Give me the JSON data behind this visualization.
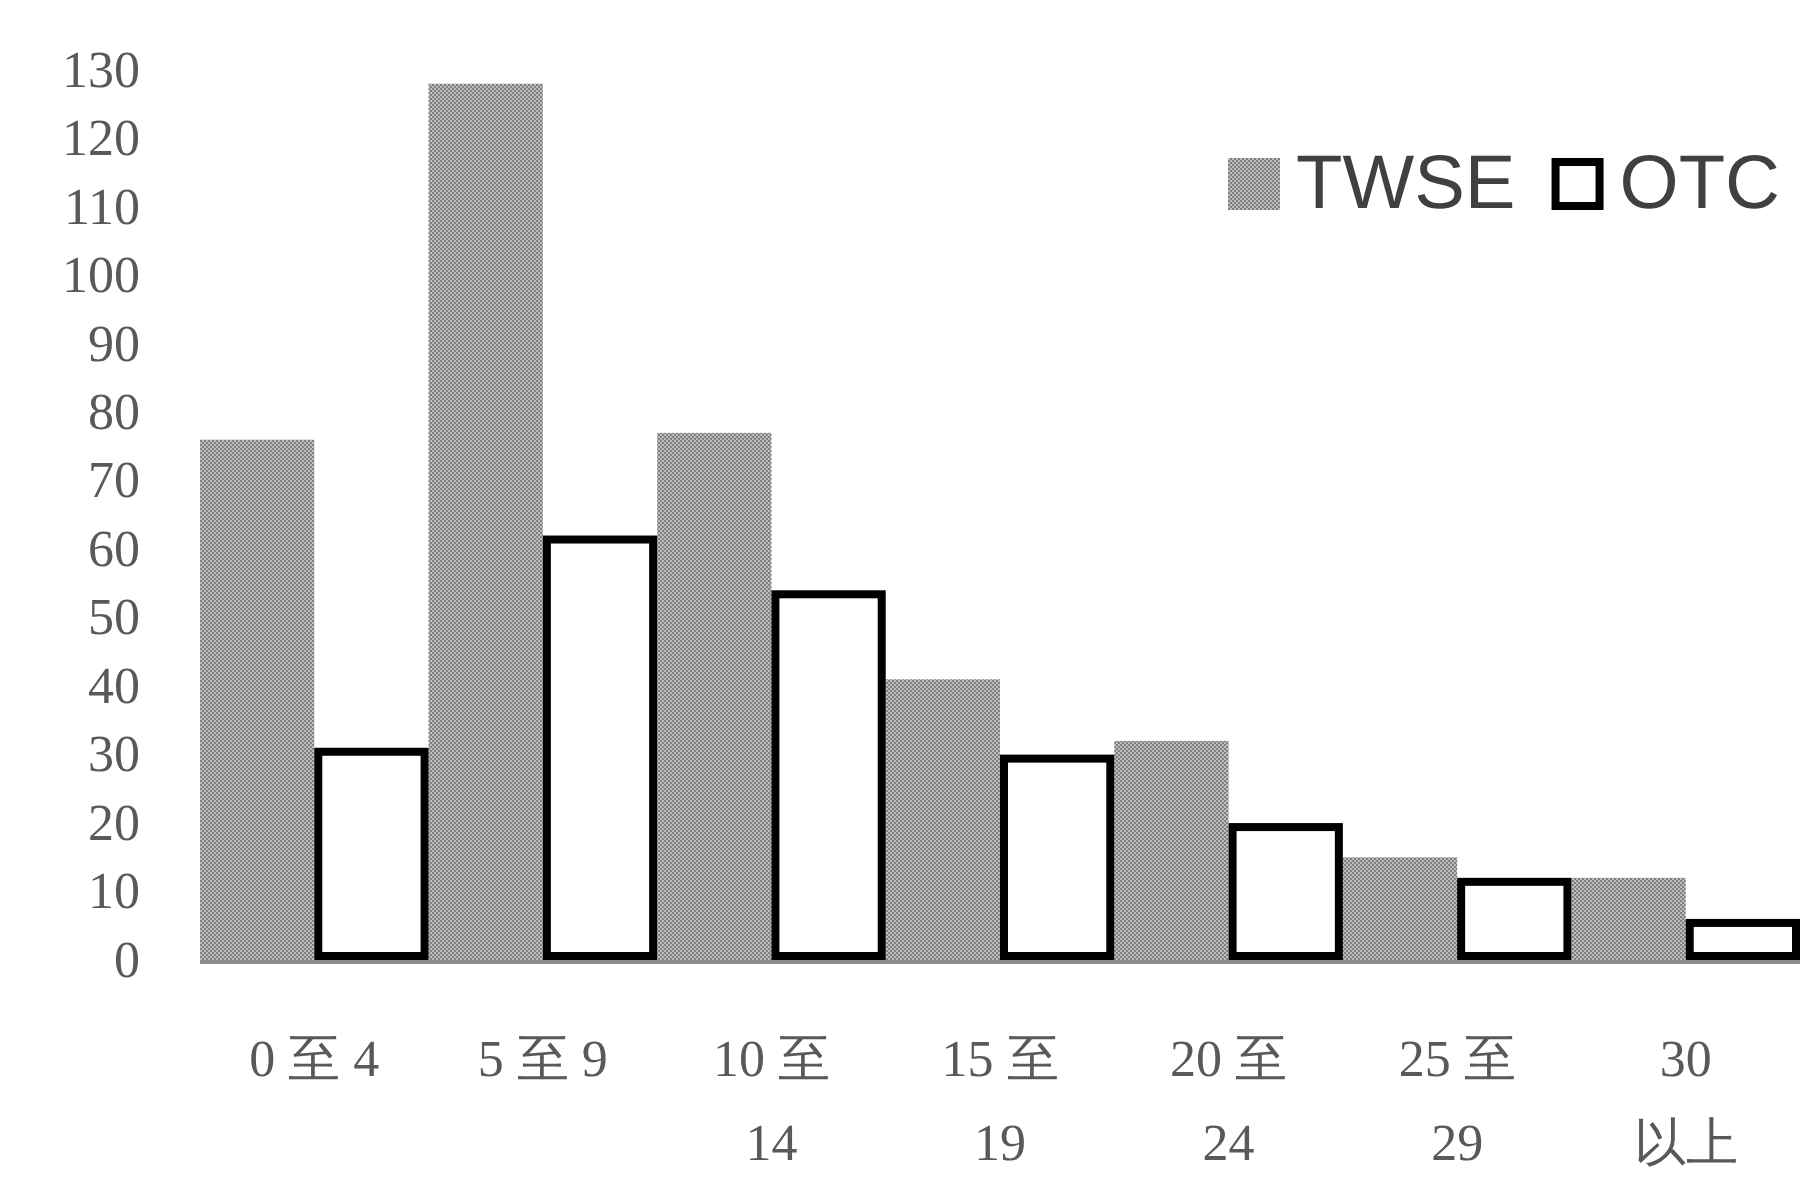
{
  "chart_data": {
    "type": "bar",
    "categories": [
      "0 至 4",
      "5 至 9",
      "10 至 14",
      "15 至 19",
      "20 至 24",
      "25 至 29",
      "30 以上"
    ],
    "series": [
      {
        "name": "TWSE",
        "color": "#7f7f7f",
        "values": [
          76,
          128,
          77,
          41,
          32,
          15,
          12
        ]
      },
      {
        "name": "OTC",
        "color": "#000000",
        "values": [
          31,
          62,
          54,
          30,
          20,
          12,
          6
        ]
      }
    ],
    "ylim": [
      0,
      130
    ],
    "yticks": [
      0,
      10,
      20,
      30,
      40,
      50,
      60,
      70,
      80,
      90,
      100,
      110,
      120,
      130
    ],
    "grid": false,
    "legend": "top right"
  }
}
